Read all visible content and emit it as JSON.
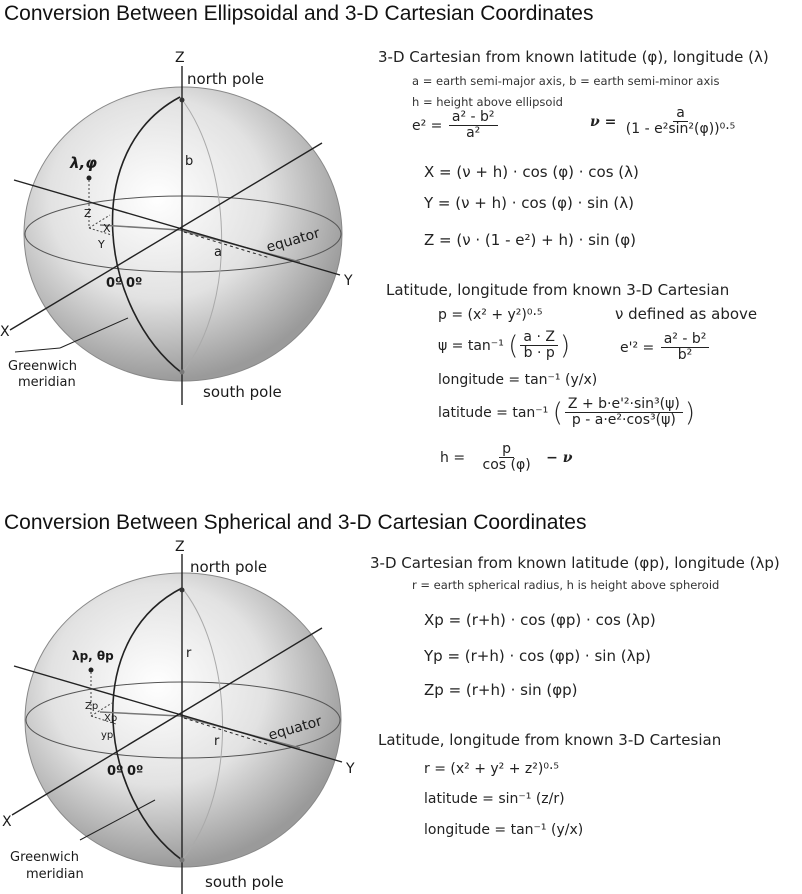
{
  "ellipsoidal": {
    "title": "Conversion Between Ellipsoidal and 3-D Cartesian Coordinates",
    "diagram": {
      "axis_z": "Z",
      "axis_x": "X",
      "axis_y": "Y",
      "north_pole": "north pole",
      "south_pole": "south pole",
      "equator": "equator",
      "greenwich": "Greenwich",
      "meridian": "meridian",
      "zero_a": "0º",
      "zero_b": "0º",
      "lam_phi": "λ,φ",
      "small_z": "Z",
      "small_x": "X",
      "small_y": "Y",
      "label_b": "b",
      "label_a": "a"
    },
    "forward": {
      "heading": "3-D Cartesian from known latitude (φ), longitude (λ)",
      "note1": "a = earth semi-major axis, b = earth semi-minor axis",
      "note2": "h = height above ellipsoid",
      "e2_lhs": "e² =",
      "e2_num": "a² - b²",
      "e2_den": "a²",
      "nu_lhs": "ν =",
      "nu_num": "a",
      "nu_den": "(1 - e²sin²(φ))⁰·⁵",
      "x_eq": "X = (ν + h) · cos (φ) · cos (λ)",
      "y_eq": "Y = (ν + h) · cos (φ) · sin (λ)",
      "z_eq": "Z = (ν · (1 - e²) + h) · sin (φ)"
    },
    "inverse": {
      "heading": "Latitude, longitude from known 3-D Cartesian",
      "p_eq": "p = (x² + y²)⁰·⁵",
      "nu_note": "ν defined as above",
      "psi_lhs": "ψ = tan⁻¹",
      "psi_num": "a · Z",
      "psi_den": "b · p",
      "e2p_lhs": "e'² =",
      "e2p_num": "a² - b²",
      "e2p_den": "b²",
      "lon_eq": "longitude = tan⁻¹ (y/x)",
      "lat_lhs": "latitude = tan⁻¹",
      "lat_num": "Z + b·e'²·sin³(ψ)",
      "lat_den": "p - a·e²·cos³(ψ)",
      "h_lhs": "h =",
      "h_num": "p",
      "h_den": "cos (φ)",
      "h_rhs": "− ν"
    }
  },
  "spherical": {
    "title": "Conversion Between Spherical and 3-D Cartesian Coordinates",
    "diagram": {
      "axis_z": "Z",
      "axis_x": "X",
      "axis_y": "Y",
      "north_pole": "north pole",
      "south_pole": "south pole",
      "equator": "equator",
      "greenwich": "Greenwich",
      "meridian": "meridian",
      "zero_a": "0º",
      "zero_b": "0º",
      "lam_theta": "λp, θp",
      "small_z": "Zp",
      "small_x": "Xp",
      "small_y": "yp",
      "label_r1": "r",
      "label_r2": "r"
    },
    "forward": {
      "heading": "3-D Cartesian from known latitude (φp), longitude (λp)",
      "note": "r = earth spherical radius, h is height above spheroid",
      "x_eq": "Xp = (r+h) · cos (φp) · cos (λp)",
      "y_eq": "Yp = (r+h) · cos (φp) · sin (λp)",
      "z_eq": "Zp = (r+h) · sin (φp)"
    },
    "inverse": {
      "heading": "Latitude, longitude from known 3-D Cartesian",
      "r_eq": "r = (x² + y² + z²)⁰·⁵",
      "lat_eq": "latitude = sin⁻¹ (z/r)",
      "lon_eq": "longitude = tan⁻¹ (y/x)"
    }
  }
}
